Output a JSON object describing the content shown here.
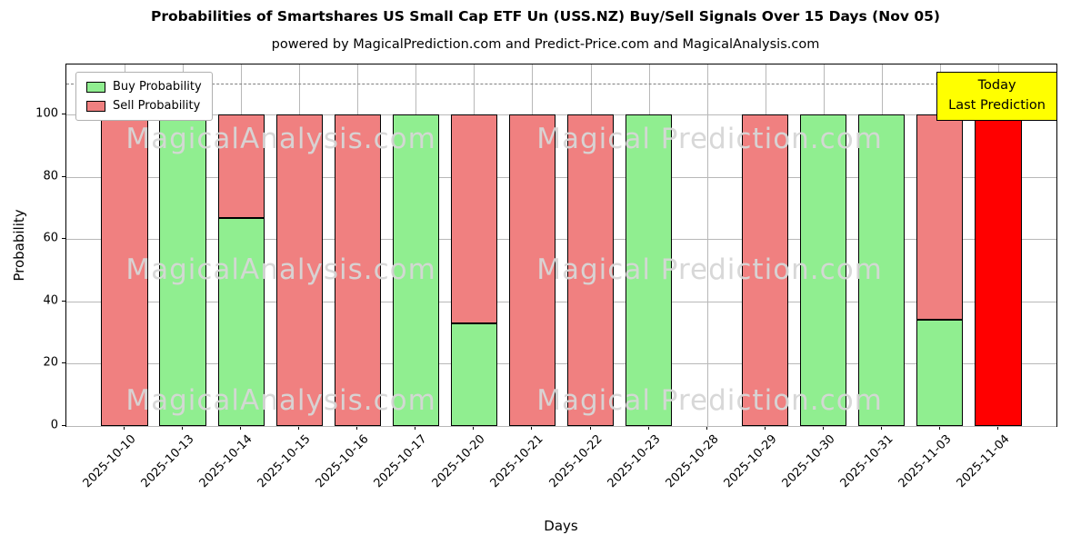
{
  "title": "Probabilities of Smartshares US Small Cap ETF Un (USS.NZ) Buy/Sell Signals Over 15 Days (Nov 05)",
  "subtitle": "powered by MagicalPrediction.com and Predict-Price.com and MagicalAnalysis.com",
  "legend": {
    "buy": "Buy Probability",
    "sell": "Sell Probability"
  },
  "annotation_box": {
    "line1": "Today",
    "line2": "Last Prediction",
    "bg": "#ffff00"
  },
  "watermarks": [
    "MagicalAnalysis.com",
    "Magical Prediction.com"
  ],
  "colors": {
    "buy": "#90ee90",
    "sell": "#f08080",
    "today": "#ff0000",
    "edge": "#000000",
    "grid": "#b8b8b8",
    "dashed": "#7f7f7f"
  },
  "chart_data": {
    "type": "bar",
    "stacked": true,
    "title": "Probabilities of Smartshares US Small Cap ETF Un (USS.NZ) Buy/Sell Signals Over 15 Days (Nov 05)",
    "xlabel": "Days",
    "ylabel": "Probability",
    "categories": [
      "2025-10-10",
      "2025-10-13",
      "2025-10-14",
      "2025-10-15",
      "2025-10-16",
      "2025-10-17",
      "2025-10-20",
      "2025-10-21",
      "2025-10-22",
      "2025-10-23",
      "2025-10-28",
      "2025-10-29",
      "2025-10-30",
      "2025-10-31",
      "2025-11-03",
      "2025-11-04"
    ],
    "series": [
      {
        "name": "Buy Probability",
        "color": "#90ee90",
        "values": [
          0,
          100,
          66.7,
          0,
          0,
          100,
          33,
          0,
          0,
          100,
          0,
          0,
          100,
          100,
          34,
          0
        ]
      },
      {
        "name": "Sell Probability",
        "color": "#f08080",
        "values": [
          100,
          0,
          33.3,
          100,
          100,
          0,
          67,
          100,
          100,
          0,
          0,
          100,
          0,
          0,
          66,
          100
        ]
      }
    ],
    "today_index": 15,
    "yticks": [
      0,
      20,
      40,
      60,
      80,
      100
    ],
    "ylim": [
      0,
      116
    ],
    "dashed_line_y": 110,
    "grid": true,
    "legend_position": "upper left"
  }
}
